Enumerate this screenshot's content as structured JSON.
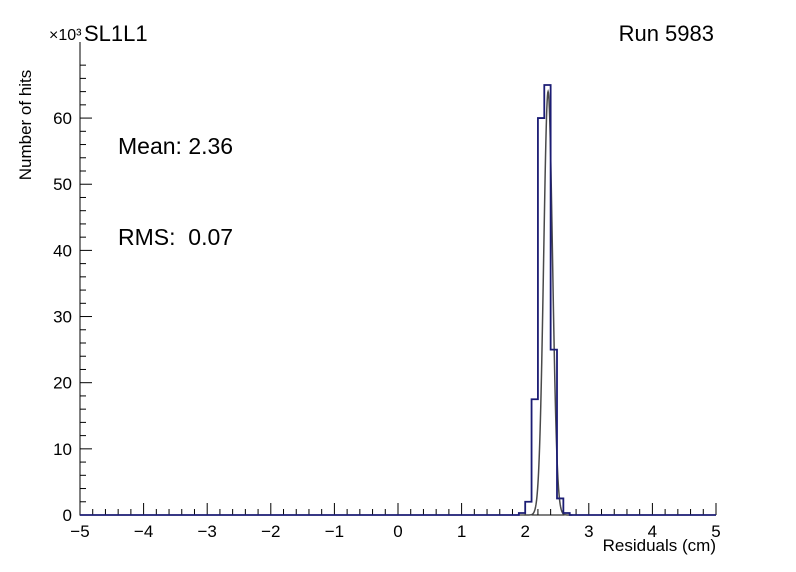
{
  "header": {
    "title": "SL1L1",
    "run_label": "Run 5983"
  },
  "stats": {
    "mean_text": "Mean: 2.36",
    "rms_text": "RMS:  0.07"
  },
  "axes": {
    "x_title": "Residuals (cm)",
    "y_title": "Number of hits",
    "y_multiplier": "×10³"
  },
  "chart_data": {
    "type": "bar",
    "subtype": "step-histogram",
    "title": "SL1L1",
    "annotation": "Run 5983",
    "xlabel": "Residuals (cm)",
    "ylabel": "Number of hits",
    "y_unit_scale": 1000,
    "xlim": [
      -5,
      5
    ],
    "ylim": [
      0,
      71.5
    ],
    "x_ticks": [
      -5,
      -4,
      -3,
      -2,
      -1,
      0,
      1,
      2,
      3,
      4,
      5
    ],
    "x_tick_labels": [
      "−5",
      "−4",
      "−3",
      "−2",
      "−1",
      "0",
      "1",
      "2",
      "3",
      "4",
      "5"
    ],
    "x_minor_step": 0.2,
    "y_ticks": [
      0,
      10,
      20,
      30,
      40,
      50,
      60
    ],
    "y_tick_labels": [
      "0",
      "10",
      "20",
      "30",
      "40",
      "50",
      "60"
    ],
    "y_minor_step": 2,
    "grid": false,
    "legend": "none",
    "bin_width": 0.1,
    "bins": [
      {
        "x0": 1.9,
        "count": 0.3
      },
      {
        "x0": 2.0,
        "count": 2.0
      },
      {
        "x0": 2.1,
        "count": 17.5
      },
      {
        "x0": 2.2,
        "count": 60.0
      },
      {
        "x0": 2.3,
        "count": 65.0
      },
      {
        "x0": 2.4,
        "count": 25.0
      },
      {
        "x0": 2.5,
        "count": 2.5
      },
      {
        "x0": 2.6,
        "count": 0.3
      }
    ],
    "fit": {
      "type": "gaussian",
      "mean": 2.36,
      "sigma": 0.07,
      "amplitude": 64,
      "range": [
        1.98,
        2.74
      ]
    },
    "stats": {
      "mean": 2.36,
      "rms": 0.07
    },
    "histogram_color": "#1b1c74",
    "fit_color": "#4a4a4a",
    "axis_color": "#000000",
    "background_color": "#ffffff"
  }
}
